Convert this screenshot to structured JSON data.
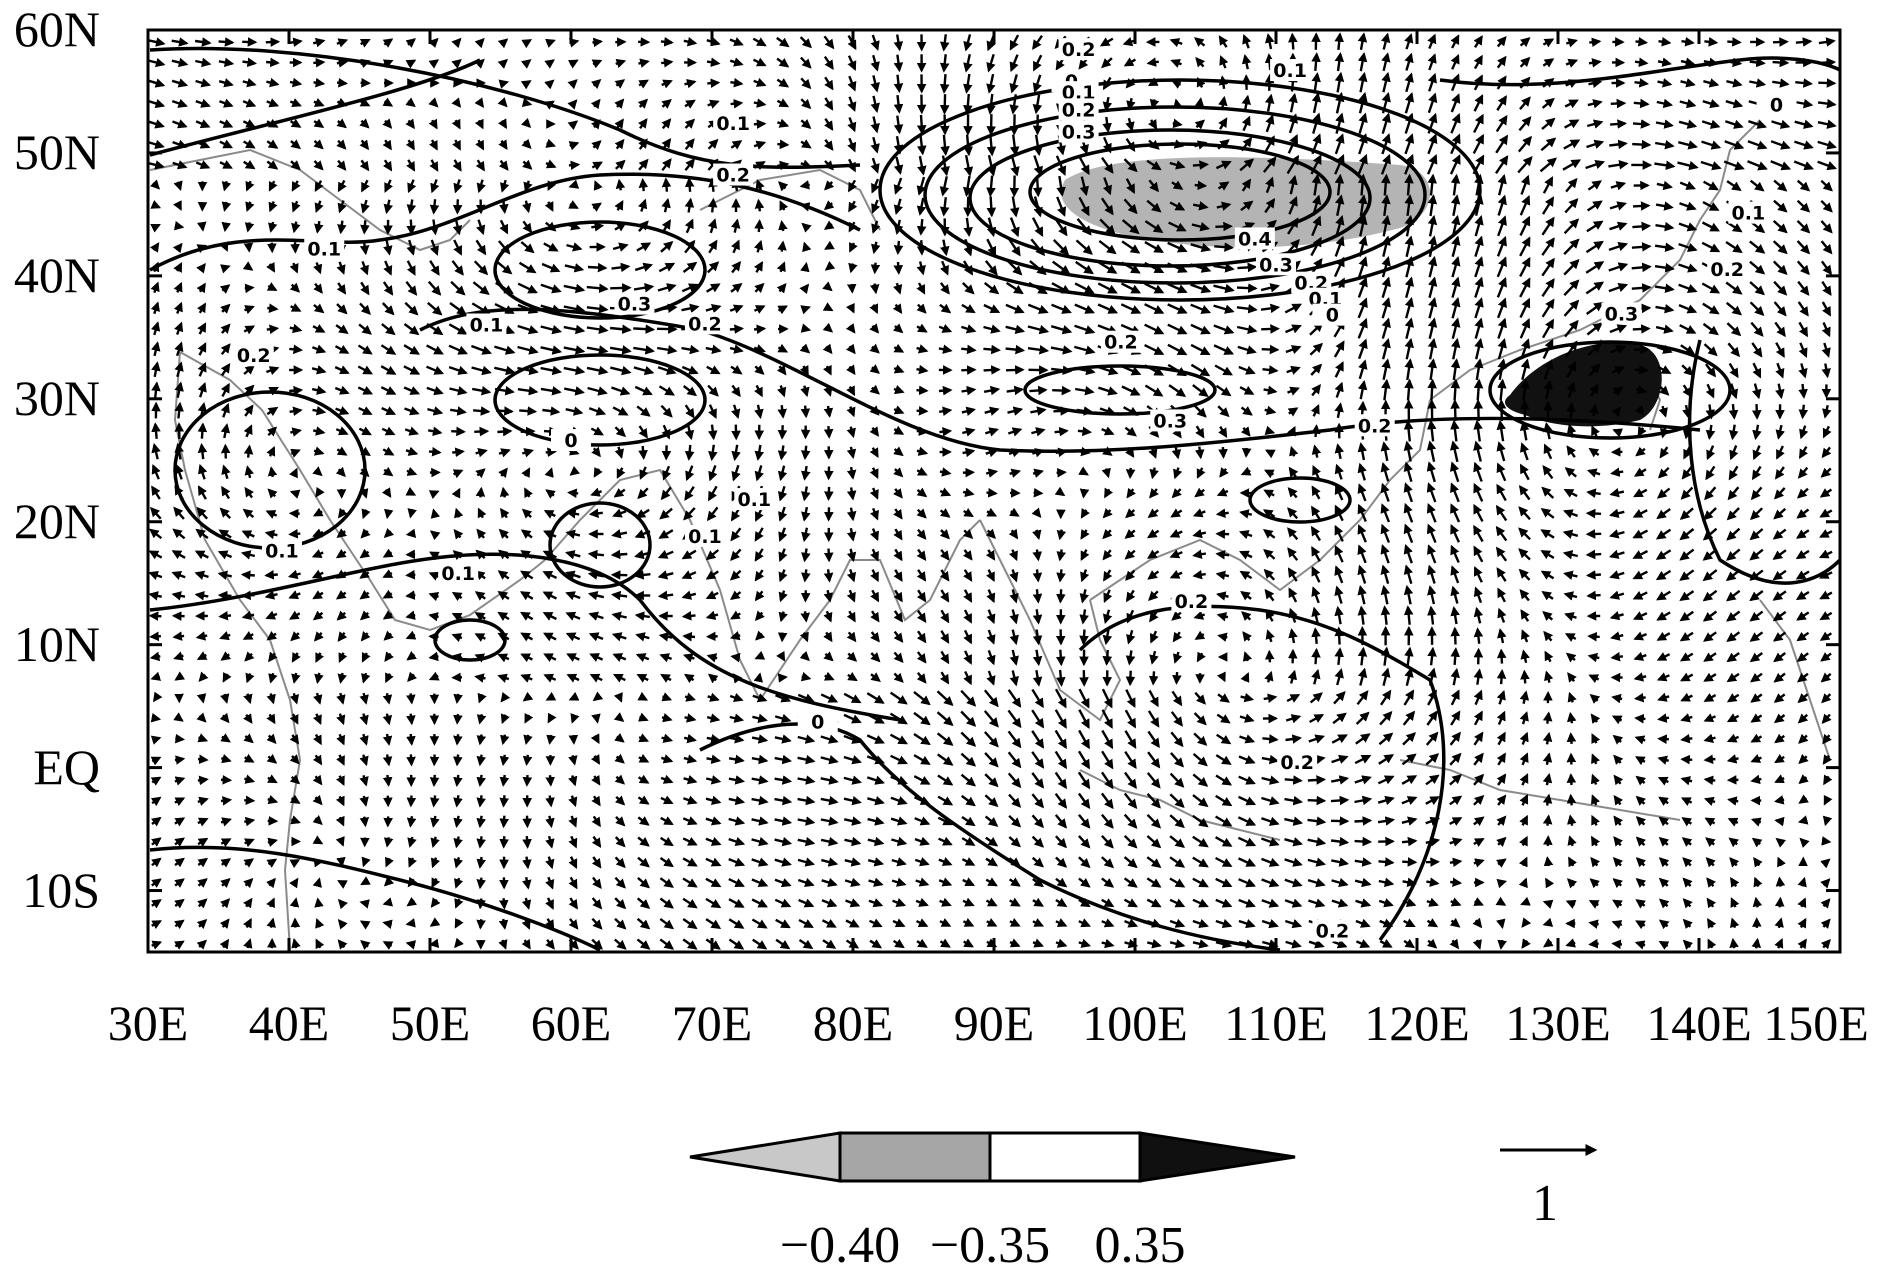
{
  "map": {
    "x_ticks": [
      "30E",
      "40E",
      "50E",
      "60E",
      "70E",
      "80E",
      "90E",
      "100E",
      "110E",
      "120E",
      "130E",
      "140E",
      "150E"
    ],
    "y_ticks": [
      "60N",
      "50N",
      "40N",
      "30N",
      "20N",
      "10N",
      "EQ",
      "10S"
    ],
    "lon_range": [
      30,
      150
    ],
    "lat_range": [
      -15,
      60
    ],
    "contour_labels": [
      {
        "text": "0.2",
        "lon": 96,
        "lat": 58.2
      },
      {
        "text": "0.1",
        "lon": 111,
        "lat": 56.5
      },
      {
        "text": "0",
        "lon": 95.5,
        "lat": 55.6
      },
      {
        "text": "0.1",
        "lon": 96,
        "lat": 54.7
      },
      {
        "text": "0.2",
        "lon": 96,
        "lat": 53.3
      },
      {
        "text": "0.3",
        "lon": 96,
        "lat": 51.5
      },
      {
        "text": "0",
        "lon": 145.5,
        "lat": 53.7
      },
      {
        "text": "0.1",
        "lon": 71.5,
        "lat": 52.2
      },
      {
        "text": "0.2",
        "lon": 71.5,
        "lat": 48.0
      },
      {
        "text": "0.1",
        "lon": 42.5,
        "lat": 42.0
      },
      {
        "text": "0.1",
        "lon": 143.5,
        "lat": 44.9
      },
      {
        "text": "0.2",
        "lon": 142,
        "lat": 40.3
      },
      {
        "text": "0.4",
        "lon": 108.5,
        "lat": 42.8
      },
      {
        "text": "0.3",
        "lon": 110,
        "lat": 40.7
      },
      {
        "text": "0.2",
        "lon": 112.5,
        "lat": 39.2
      },
      {
        "text": "0.1",
        "lon": 113.5,
        "lat": 37.9
      },
      {
        "text": "0",
        "lon": 114,
        "lat": 36.6
      },
      {
        "text": "0.3",
        "lon": 134.5,
        "lat": 36.7
      },
      {
        "text": "0.3",
        "lon": 64.5,
        "lat": 37.5
      },
      {
        "text": "0.2",
        "lon": 69.5,
        "lat": 35.9
      },
      {
        "text": "0.1",
        "lon": 54,
        "lat": 35.8
      },
      {
        "text": "0.2",
        "lon": 37.5,
        "lat": 33.3
      },
      {
        "text": "0.2",
        "lon": 99,
        "lat": 34.4
      },
      {
        "text": "0.3",
        "lon": 102.5,
        "lat": 28.0
      },
      {
        "text": "0.2",
        "lon": 117,
        "lat": 27.6
      },
      {
        "text": "0",
        "lon": 60,
        "lat": 26.4
      },
      {
        "text": "0.1",
        "lon": 73,
        "lat": 21.6
      },
      {
        "text": "0.1",
        "lon": 69.5,
        "lat": 18.6
      },
      {
        "text": "0.1",
        "lon": 39.5,
        "lat": 17.4
      },
      {
        "text": "0.1",
        "lon": 52,
        "lat": 15.6
      },
      {
        "text": "0.2",
        "lon": 104,
        "lat": 13.3
      },
      {
        "text": "0",
        "lon": 77.5,
        "lat": 3.5
      },
      {
        "text": "0.2",
        "lon": 111.5,
        "lat": 0.2
      },
      {
        "text": "0.2",
        "lon": 114,
        "lat": -13.5
      }
    ]
  },
  "colorbar": {
    "labels": [
      "−0.40",
      "−0.35",
      "0.35"
    ],
    "colors": [
      "#c8c8c8",
      "#a6a6a6",
      "#ffffff",
      "#101010"
    ]
  },
  "reference_vector": {
    "label": "1"
  },
  "colors": {
    "negative_shading": "#b4b4b4",
    "positive_shading": "#111111",
    "coast": "#8a8a8a"
  }
}
